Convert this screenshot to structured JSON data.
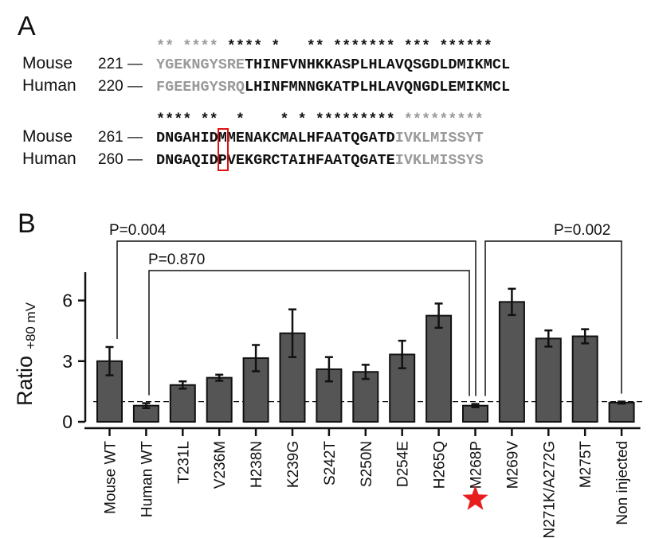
{
  "panel_a": {
    "letter": "A",
    "block1": {
      "conservation": "** **** **** * ** ******* *** ******",
      "conservation_segments": [
        {
          "text": "**",
          "col": 0,
          "shade": "gray"
        },
        {
          "text": "****",
          "col": 3,
          "shade": "gray"
        },
        {
          "text": "****",
          "col": 8,
          "shade": "black"
        },
        {
          "text": "*",
          "col": 13,
          "shade": "black"
        },
        {
          "text": "**",
          "col": 17,
          "shade": "black"
        },
        {
          "text": "*******",
          "col": 20,
          "shade": "black"
        },
        {
          "text": "***",
          "col": 28,
          "shade": "black"
        },
        {
          "text": "******",
          "col": 32,
          "shade": "black"
        }
      ],
      "rows": [
        {
          "species": "Mouse",
          "pos": "221 —",
          "gray": "YGEKNGYSRE",
          "black": "THINFVNHKKASPLHLAVQSGDLDMIKMCL"
        },
        {
          "species": "Human",
          "pos": "220 —",
          "gray": "FGEEHGYSRQ",
          "black": "LHINFMNNGKATPLHLAVQNGDLEMIKMCL"
        }
      ]
    },
    "block2": {
      "conservation_segments": [
        {
          "text": "****",
          "col": 0,
          "shade": "black"
        },
        {
          "text": "**",
          "col": 5,
          "shade": "black"
        },
        {
          "text": "*",
          "col": 9,
          "shade": "black"
        },
        {
          "text": "*",
          "col": 14,
          "shade": "black"
        },
        {
          "text": "*",
          "col": 16,
          "shade": "black"
        },
        {
          "text": "*********",
          "col": 18,
          "shade": "black"
        },
        {
          "text": "*********",
          "col": 28,
          "shade": "gray"
        }
      ],
      "rows": [
        {
          "species": "Mouse",
          "pos": "261 —",
          "black": "DNGAHIDMMENAKCMALHFAATQGATD",
          "gray": "IVKLMISSYT"
        },
        {
          "species": "Human",
          "pos": "260 —",
          "black": "DNGAQIDPVEKGRCTAIHFAATQGATE",
          "gray": "IVKLMISSYS"
        }
      ],
      "highlight_col": 7,
      "highlight_color": "#e01010"
    }
  },
  "panel_b": {
    "letter": "B",
    "comparisons": [
      {
        "label": "P=0.004",
        "from": "Mouse WT",
        "to": "M268P"
      },
      {
        "label": "P=0.870",
        "from": "Human WT",
        "to": "M268P"
      },
      {
        "label": "P=0.002",
        "from": "M268P",
        "to": "Non injected"
      }
    ],
    "marker": {
      "category": "M268P",
      "shape": "star",
      "color": "#e81e1e"
    }
  },
  "chart_data": {
    "type": "bar",
    "categories": [
      "Mouse WT",
      "Human WT",
      "T231L",
      "V236M",
      "H238N",
      "K239G",
      "S242T",
      "S250N",
      "D254E",
      "H265Q",
      "M268P",
      "M269V",
      "N271K/A272G",
      "M275T",
      "Non injected"
    ],
    "values": [
      3.0,
      0.8,
      1.82,
      2.18,
      3.15,
      4.38,
      2.6,
      2.47,
      3.33,
      5.25,
      0.8,
      5.93,
      4.12,
      4.23,
      0.95
    ],
    "errors": [
      0.7,
      0.12,
      0.18,
      0.15,
      0.65,
      1.18,
      0.6,
      0.35,
      0.68,
      0.6,
      0.08,
      0.65,
      0.4,
      0.35,
      0.05
    ],
    "ylabel": "Ratio",
    "ylabel_subscript": "+80 mV",
    "xlabel": "",
    "title": "",
    "ylim": [
      0,
      7.4
    ],
    "yticks": [
      0,
      3,
      6
    ],
    "reference_line": 1.0,
    "bar_color": "#555555",
    "grid": false
  }
}
